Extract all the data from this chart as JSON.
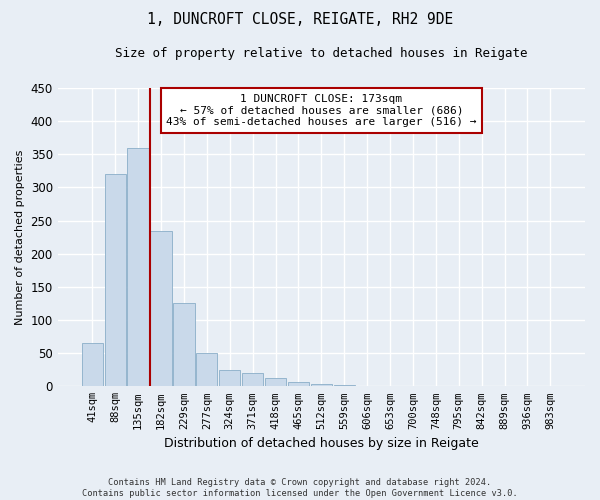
{
  "title": "1, DUNCROFT CLOSE, REIGATE, RH2 9DE",
  "subtitle": "Size of property relative to detached houses in Reigate",
  "xlabel": "Distribution of detached houses by size in Reigate",
  "ylabel": "Number of detached properties",
  "categories": [
    "41sqm",
    "88sqm",
    "135sqm",
    "182sqm",
    "229sqm",
    "277sqm",
    "324sqm",
    "371sqm",
    "418sqm",
    "465sqm",
    "512sqm",
    "559sqm",
    "606sqm",
    "653sqm",
    "700sqm",
    "748sqm",
    "795sqm",
    "842sqm",
    "889sqm",
    "936sqm",
    "983sqm"
  ],
  "values": [
    65,
    320,
    360,
    235,
    125,
    50,
    25,
    20,
    13,
    7,
    4,
    2,
    1,
    1,
    0,
    1,
    0,
    0,
    1,
    0,
    1
  ],
  "bar_color": "#c9d9ea",
  "bar_edge_color": "#8aaec8",
  "background_color": "#e8eef5",
  "grid_color": "#ffffff",
  "annotation_text_line1": "1 DUNCROFT CLOSE: 173sqm",
  "annotation_text_line2": "← 57% of detached houses are smaller (686)",
  "annotation_text_line3": "43% of semi-detached houses are larger (516) →",
  "annotation_box_facecolor": "#ffffff",
  "annotation_line_color": "#aa0000",
  "red_line_x": 2.5,
  "ylim": [
    0,
    450
  ],
  "yticks": [
    0,
    50,
    100,
    150,
    200,
    250,
    300,
    350,
    400,
    450
  ],
  "footer_line1": "Contains HM Land Registry data © Crown copyright and database right 2024.",
  "footer_line2": "Contains public sector information licensed under the Open Government Licence v3.0."
}
